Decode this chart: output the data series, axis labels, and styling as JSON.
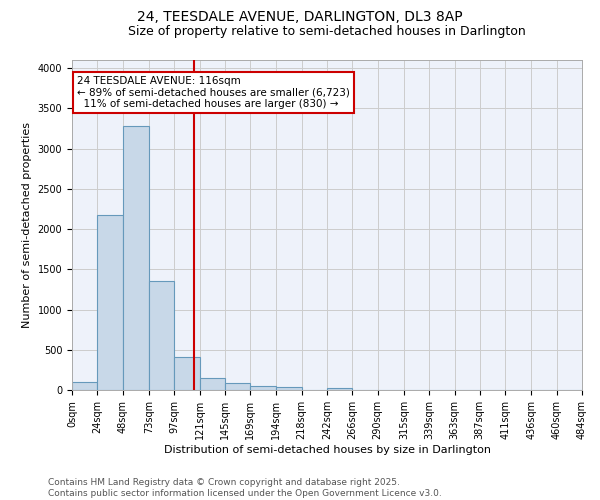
{
  "title_line1": "24, TEESDALE AVENUE, DARLINGTON, DL3 8AP",
  "title_line2": "Size of property relative to semi-detached houses in Darlington",
  "xlabel": "Distribution of semi-detached houses by size in Darlington",
  "ylabel": "Number of semi-detached properties",
  "bar_color": "#c8d8e8",
  "bar_edge_color": "#6699bb",
  "grid_color": "#cccccc",
  "background_color": "#eef2fa",
  "bin_edges": [
    0,
    24,
    48,
    73,
    97,
    121,
    145,
    169,
    194,
    218,
    242,
    266,
    290,
    315,
    339,
    363,
    387,
    411,
    436,
    460,
    484
  ],
  "bin_labels": [
    "0sqm",
    "24sqm",
    "48sqm",
    "73sqm",
    "97sqm",
    "121sqm",
    "145sqm",
    "169sqm",
    "194sqm",
    "218sqm",
    "242sqm",
    "266sqm",
    "290sqm",
    "315sqm",
    "339sqm",
    "363sqm",
    "387sqm",
    "411sqm",
    "436sqm",
    "460sqm",
    "484sqm"
  ],
  "bar_heights": [
    100,
    2175,
    3275,
    1350,
    410,
    155,
    90,
    50,
    40,
    5,
    20,
    0,
    0,
    0,
    0,
    0,
    0,
    0,
    0,
    0
  ],
  "property_size": 116,
  "property_line": "24 TEESDALE AVENUE: 116sqm",
  "pct_smaller": 89,
  "n_smaller": 6723,
  "pct_larger": 11,
  "n_larger": 830,
  "vline_color": "#cc0000",
  "annotation_box_color": "#cc0000",
  "ylim": [
    0,
    4100
  ],
  "yticks": [
    0,
    500,
    1000,
    1500,
    2000,
    2500,
    3000,
    3500,
    4000
  ],
  "footer_line1": "Contains HM Land Registry data © Crown copyright and database right 2025.",
  "footer_line2": "Contains public sector information licensed under the Open Government Licence v3.0.",
  "title_fontsize": 10,
  "subtitle_fontsize": 9,
  "axis_label_fontsize": 8,
  "tick_fontsize": 7,
  "annotation_fontsize": 7.5,
  "footer_fontsize": 6.5
}
